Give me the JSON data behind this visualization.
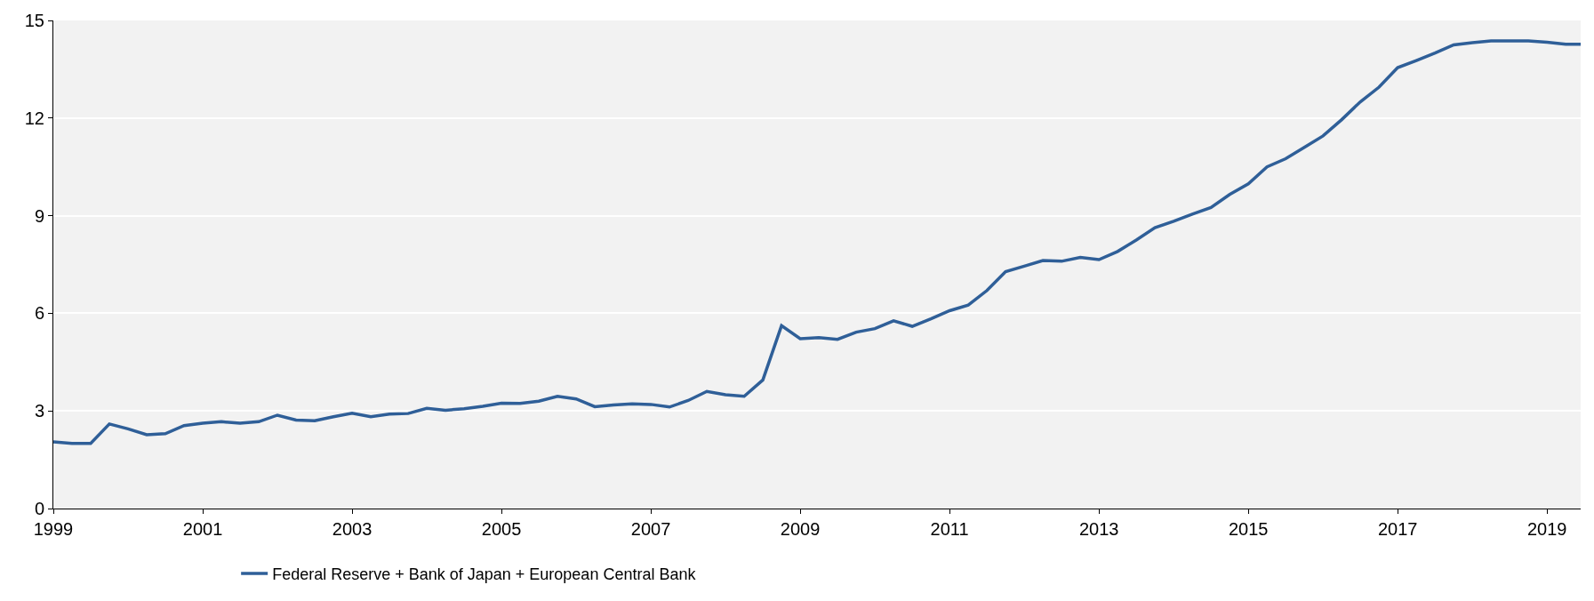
{
  "chart_data": {
    "type": "line",
    "x": [
      1999,
      1999.25,
      1999.5,
      1999.75,
      2000,
      2000.25,
      2000.5,
      2000.75,
      2001,
      2001.25,
      2001.5,
      2001.75,
      2002,
      2002.25,
      2002.5,
      2002.75,
      2003,
      2003.25,
      2003.5,
      2003.75,
      2004,
      2004.25,
      2004.5,
      2004.75,
      2005,
      2005.25,
      2005.5,
      2005.75,
      2006,
      2006.25,
      2006.5,
      2006.75,
      2007,
      2007.25,
      2007.5,
      2007.75,
      2008,
      2008.25,
      2008.5,
      2008.75,
      2009,
      2009.25,
      2009.5,
      2009.75,
      2010,
      2010.25,
      2010.5,
      2010.75,
      2011,
      2011.25,
      2011.5,
      2011.75,
      2012,
      2012.25,
      2012.5,
      2012.75,
      2013,
      2013.25,
      2013.5,
      2013.75,
      2014,
      2014.25,
      2014.5,
      2014.75,
      2015,
      2015.25,
      2015.5,
      2015.75,
      2016,
      2016.25,
      2016.5,
      2016.75,
      2017,
      2017.25,
      2017.5,
      2017.75,
      2018,
      2018.25,
      2018.5,
      2018.75,
      2019,
      2019.25,
      2019.45
    ],
    "series": [
      {
        "name": "Federal Reserve + Bank of Japan + European Central Bank",
        "color": "#2f5f98",
        "values": [
          2.05,
          2.0,
          2.0,
          2.6,
          2.45,
          2.27,
          2.3,
          2.55,
          2.62,
          2.67,
          2.62,
          2.67,
          2.87,
          2.72,
          2.7,
          2.82,
          2.93,
          2.82,
          2.9,
          2.92,
          3.08,
          3.02,
          3.07,
          3.14,
          3.24,
          3.23,
          3.3,
          3.45,
          3.37,
          3.13,
          3.18,
          3.22,
          3.2,
          3.12,
          3.32,
          3.6,
          3.5,
          3.45,
          3.95,
          5.62,
          5.22,
          5.25,
          5.2,
          5.42,
          5.53,
          5.77,
          5.6,
          5.83,
          6.08,
          6.25,
          6.7,
          7.28,
          7.45,
          7.62,
          7.6,
          7.72,
          7.65,
          7.9,
          8.25,
          8.63,
          8.83,
          9.05,
          9.25,
          9.65,
          9.98,
          10.5,
          10.75,
          11.1,
          11.45,
          11.95,
          12.5,
          12.95,
          13.55,
          13.77,
          14.0,
          14.25,
          14.32,
          14.37,
          14.37,
          14.37,
          14.33,
          14.27,
          14.27
        ]
      }
    ],
    "xlim": [
      1999,
      2019.45
    ],
    "xticks": [
      1999,
      2001,
      2003,
      2005,
      2007,
      2009,
      2011,
      2013,
      2015,
      2017,
      2019
    ],
    "ylim": [
      0,
      15
    ],
    "yticks": [
      0,
      3,
      6,
      9,
      12,
      15
    ],
    "grid": "y",
    "legend": "bottom left",
    "marker": "none",
    "line_style": "solid"
  }
}
